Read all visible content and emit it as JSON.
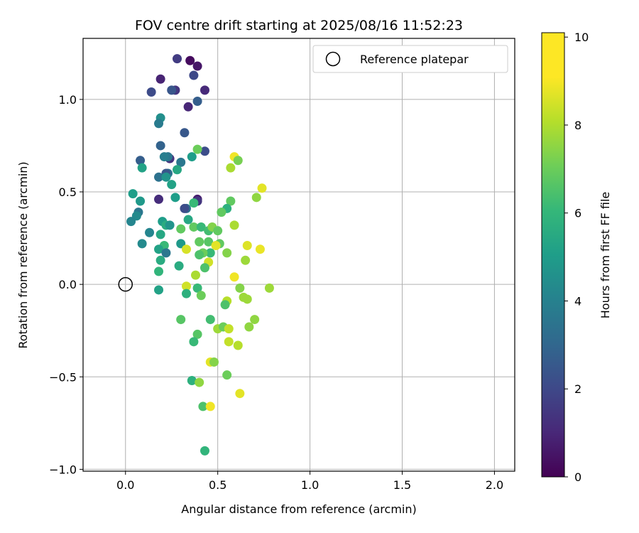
{
  "chart_data": {
    "type": "scatter",
    "title": "FOV centre drift starting at 2025/08/16 11:52:23",
    "xlabel": "Angular distance from reference (arcmin)",
    "ylabel": "Rotation from reference (arcmin)",
    "xlim": [
      -0.23,
      2.11
    ],
    "ylim": [
      -1.01,
      1.33
    ],
    "xticks": [
      0.0,
      0.5,
      1.0,
      1.5,
      2.0
    ],
    "xtick_labels": [
      "0.0",
      "0.5",
      "1.0",
      "1.5",
      "2.0"
    ],
    "yticks": [
      -1.0,
      -0.5,
      0.0,
      0.5,
      1.0
    ],
    "ytick_labels": [
      "−1.0",
      "−0.5",
      "0.0",
      "0.5",
      "1.0"
    ],
    "grid": true,
    "legend": {
      "placement": "top-right",
      "entries": [
        "Reference platepar"
      ]
    },
    "reference_point": {
      "x": 0.0,
      "y": 0.0
    },
    "colorbar": {
      "label": "Hours from first FF file",
      "colormap": "viridis",
      "range": [
        0,
        10.1
      ],
      "ticks": [
        0,
        2,
        4,
        6,
        8,
        10
      ],
      "tick_labels": [
        "0",
        "2",
        "4",
        "6",
        "8",
        "10"
      ]
    },
    "points": [
      [
        0.35,
        1.21,
        0.3
      ],
      [
        0.39,
        1.18,
        0.6
      ],
      [
        0.28,
        1.22,
        1.8
      ],
      [
        0.37,
        1.13,
        2.2
      ],
      [
        0.43,
        1.05,
        1.2
      ],
      [
        0.19,
        1.11,
        1.0
      ],
      [
        0.27,
        1.05,
        1.6
      ],
      [
        0.25,
        1.05,
        2.7
      ],
      [
        0.14,
        1.04,
        2.3
      ],
      [
        0.34,
        0.96,
        1.1
      ],
      [
        0.39,
        0.99,
        3.0
      ],
      [
        0.19,
        0.9,
        5.0
      ],
      [
        0.18,
        0.87,
        4.2
      ],
      [
        0.32,
        0.82,
        2.8
      ],
      [
        0.19,
        0.75,
        3.2
      ],
      [
        0.43,
        0.72,
        2.4
      ],
      [
        0.39,
        0.73,
        7.8
      ],
      [
        0.59,
        0.69,
        9.9
      ],
      [
        0.61,
        0.67,
        8.0
      ],
      [
        0.36,
        0.69,
        5.6
      ],
      [
        0.24,
        0.68,
        1.5
      ],
      [
        0.23,
        0.69,
        4.0
      ],
      [
        0.21,
        0.69,
        4.3
      ],
      [
        0.3,
        0.66,
        4.0
      ],
      [
        0.08,
        0.67,
        3.0
      ],
      [
        0.09,
        0.63,
        5.8
      ],
      [
        0.57,
        0.63,
        8.8
      ],
      [
        0.28,
        0.62,
        6.0
      ],
      [
        0.23,
        0.6,
        4.0
      ],
      [
        0.22,
        0.6,
        2.8
      ],
      [
        0.18,
        0.58,
        3.8
      ],
      [
        0.22,
        0.58,
        5.2
      ],
      [
        0.25,
        0.54,
        5.8
      ],
      [
        0.74,
        0.52,
        9.7
      ],
      [
        0.71,
        0.47,
        8.4
      ],
      [
        0.04,
        0.49,
        5.6
      ],
      [
        0.27,
        0.47,
        5.6
      ],
      [
        0.08,
        0.45,
        5.4
      ],
      [
        0.18,
        0.46,
        1.3
      ],
      [
        0.39,
        0.46,
        0.8
      ],
      [
        0.39,
        0.45,
        1.6
      ],
      [
        0.57,
        0.45,
        7.6
      ],
      [
        0.37,
        0.44,
        6.8
      ],
      [
        0.33,
        0.41,
        3.8
      ],
      [
        0.32,
        0.41,
        2.4
      ],
      [
        0.55,
        0.41,
        6.4
      ],
      [
        0.52,
        0.39,
        7.6
      ],
      [
        0.07,
        0.39,
        4.0
      ],
      [
        0.06,
        0.37,
        4.8
      ],
      [
        0.03,
        0.34,
        4.6
      ],
      [
        0.34,
        0.35,
        6.0
      ],
      [
        0.2,
        0.34,
        5.6
      ],
      [
        0.22,
        0.32,
        6.2
      ],
      [
        0.24,
        0.32,
        5.2
      ],
      [
        0.3,
        0.3,
        7.6
      ],
      [
        0.37,
        0.31,
        7.6
      ],
      [
        0.41,
        0.31,
        6.8
      ],
      [
        0.45,
        0.29,
        7.0
      ],
      [
        0.47,
        0.31,
        8.2
      ],
      [
        0.5,
        0.29,
        7.6
      ],
      [
        0.59,
        0.32,
        8.8
      ],
      [
        0.13,
        0.28,
        4.6
      ],
      [
        0.19,
        0.27,
        6.0
      ],
      [
        0.21,
        0.21,
        6.8
      ],
      [
        0.18,
        0.19,
        5.8
      ],
      [
        0.09,
        0.22,
        4.8
      ],
      [
        0.22,
        0.17,
        4.0
      ],
      [
        0.3,
        0.22,
        5.4
      ],
      [
        0.33,
        0.19,
        9.5
      ],
      [
        0.4,
        0.23,
        7.6
      ],
      [
        0.45,
        0.23,
        7.4
      ],
      [
        0.51,
        0.22,
        7.6
      ],
      [
        0.49,
        0.21,
        9.7
      ],
      [
        0.46,
        0.17,
        6.8
      ],
      [
        0.42,
        0.17,
        7.8
      ],
      [
        0.4,
        0.16,
        7.2
      ],
      [
        0.55,
        0.17,
        8.2
      ],
      [
        0.66,
        0.21,
        9.6
      ],
      [
        0.73,
        0.19,
        9.8
      ],
      [
        0.65,
        0.13,
        8.6
      ],
      [
        0.45,
        0.12,
        9.4
      ],
      [
        0.43,
        0.09,
        7.2
      ],
      [
        0.19,
        0.13,
        6.2
      ],
      [
        0.29,
        0.1,
        6.2
      ],
      [
        0.18,
        0.07,
        6.6
      ],
      [
        0.38,
        0.05,
        8.8
      ],
      [
        0.59,
        0.04,
        9.9
      ],
      [
        0.33,
        -0.01,
        9.4
      ],
      [
        0.39,
        -0.02,
        6.8
      ],
      [
        0.33,
        -0.05,
        6.4
      ],
      [
        0.41,
        -0.06,
        7.8
      ],
      [
        0.18,
        -0.03,
        5.8
      ],
      [
        0.62,
        -0.02,
        8.2
      ],
      [
        0.78,
        -0.02,
        8.6
      ],
      [
        0.64,
        -0.07,
        8.6
      ],
      [
        0.66,
        -0.08,
        8.6
      ],
      [
        0.55,
        -0.09,
        9.0
      ],
      [
        0.54,
        -0.11,
        7.2
      ],
      [
        0.3,
        -0.19,
        7.4
      ],
      [
        0.46,
        -0.19,
        7.0
      ],
      [
        0.7,
        -0.19,
        8.4
      ],
      [
        0.5,
        -0.24,
        8.6
      ],
      [
        0.53,
        -0.23,
        7.8
      ],
      [
        0.56,
        -0.24,
        9.2
      ],
      [
        0.67,
        -0.23,
        8.4
      ],
      [
        0.39,
        -0.27,
        7.4
      ],
      [
        0.37,
        -0.31,
        6.8
      ],
      [
        0.56,
        -0.31,
        9.2
      ],
      [
        0.61,
        -0.33,
        9.0
      ],
      [
        0.46,
        -0.42,
        9.7
      ],
      [
        0.48,
        -0.42,
        8.2
      ],
      [
        0.55,
        -0.49,
        7.8
      ],
      [
        0.36,
        -0.52,
        6.4
      ],
      [
        0.4,
        -0.53,
        8.4
      ],
      [
        0.62,
        -0.59,
        9.7
      ],
      [
        0.42,
        -0.66,
        7.2
      ],
      [
        0.46,
        -0.66,
        9.9
      ],
      [
        0.43,
        -0.9,
        6.6
      ]
    ]
  }
}
